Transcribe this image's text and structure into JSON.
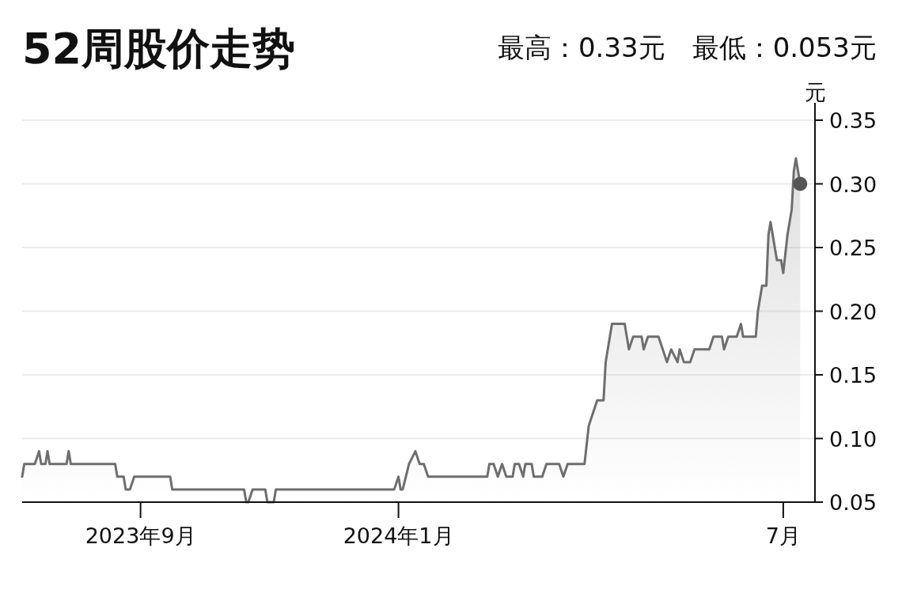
{
  "chart_data": {
    "type": "area",
    "title": "52周股价走势",
    "subtitle": "最高：0.33元　最低：0.053元",
    "ylabel": "元",
    "xlim": [
      "2023-07-07",
      "2024-07-16"
    ],
    "ylim": [
      0.05,
      0.35
    ],
    "xticks": [
      {
        "value": "2023-09-01",
        "label": "2023年9月"
      },
      {
        "value": "2024-01-01",
        "label": "2024年1月"
      },
      {
        "value": "2024-07-01",
        "label": "7月"
      }
    ],
    "yticks": [
      {
        "value": 0.05,
        "label": "0.05"
      },
      {
        "value": 0.1,
        "label": "0.10"
      },
      {
        "value": 0.15,
        "label": "0.15"
      },
      {
        "value": 0.2,
        "label": "0.20"
      },
      {
        "value": 0.25,
        "label": "0.25"
      },
      {
        "value": 0.3,
        "label": "0.30"
      },
      {
        "value": 0.35,
        "label": "0.35"
      }
    ],
    "grid": "y",
    "series": [
      {
        "color": "#6e6e6e",
        "x": [
          "2023-07-07",
          "2023-07-08",
          "2023-07-13",
          "2023-07-15",
          "2023-07-16",
          "2023-07-18",
          "2023-07-19",
          "2023-07-20",
          "2023-07-28",
          "2023-07-29",
          "2023-07-30",
          "2023-08-20",
          "2023-08-21",
          "2023-08-24",
          "2023-08-25",
          "2023-08-27",
          "2023-08-29",
          "2023-09-15",
          "2023-09-16",
          "2023-10-20",
          "2023-10-21",
          "2023-10-22",
          "2023-10-24",
          "2023-10-30",
          "2023-10-31",
          "2023-11-03",
          "2023-11-04",
          "2023-12-30",
          "2024-01-01",
          "2024-01-02",
          "2024-01-03",
          "2024-01-06",
          "2024-01-09",
          "2024-01-11",
          "2024-01-13",
          "2024-01-15",
          "2024-02-12",
          "2024-02-13",
          "2024-02-15",
          "2024-02-17",
          "2024-02-19",
          "2024-02-21",
          "2024-02-24",
          "2024-02-25",
          "2024-02-27",
          "2024-02-29",
          "2024-03-01",
          "2024-03-04",
          "2024-03-05",
          "2024-03-09",
          "2024-03-11",
          "2024-03-17",
          "2024-03-19",
          "2024-03-21",
          "2024-03-29",
          "2024-03-31",
          "2024-04-04",
          "2024-04-07",
          "2024-04-08",
          "2024-04-09",
          "2024-04-11",
          "2024-04-17",
          "2024-04-19",
          "2024-04-21",
          "2024-04-25",
          "2024-04-26",
          "2024-04-28",
          "2024-05-03",
          "2024-05-05",
          "2024-05-07",
          "2024-05-09",
          "2024-05-12",
          "2024-05-13",
          "2024-05-15",
          "2024-05-18",
          "2024-05-20",
          "2024-05-27",
          "2024-05-29",
          "2024-06-02",
          "2024-06-03",
          "2024-06-05",
          "2024-06-09",
          "2024-06-11",
          "2024-06-12",
          "2024-06-18",
          "2024-06-19",
          "2024-06-21",
          "2024-06-23",
          "2024-06-24",
          "2024-06-25",
          "2024-06-26",
          "2024-06-28",
          "2024-06-30",
          "2024-07-01",
          "2024-07-03",
          "2024-07-05",
          "2024-07-06",
          "2024-07-07",
          "2024-07-08",
          "2024-07-09"
        ],
        "values": [
          0.07,
          0.08,
          0.08,
          0.09,
          0.08,
          0.08,
          0.09,
          0.08,
          0.08,
          0.09,
          0.08,
          0.08,
          0.07,
          0.07,
          0.06,
          0.06,
          0.07,
          0.07,
          0.06,
          0.06,
          0.05,
          0.05,
          0.06,
          0.06,
          0.05,
          0.05,
          0.06,
          0.06,
          0.07,
          0.06,
          0.06,
          0.08,
          0.09,
          0.08,
          0.08,
          0.07,
          0.07,
          0.08,
          0.08,
          0.07,
          0.08,
          0.07,
          0.07,
          0.08,
          0.08,
          0.07,
          0.08,
          0.08,
          0.07,
          0.07,
          0.08,
          0.08,
          0.07,
          0.08,
          0.08,
          0.11,
          0.13,
          0.13,
          0.16,
          0.17,
          0.19,
          0.19,
          0.17,
          0.18,
          0.18,
          0.17,
          0.18,
          0.18,
          0.17,
          0.16,
          0.17,
          0.16,
          0.17,
          0.16,
          0.16,
          0.17,
          0.17,
          0.18,
          0.18,
          0.17,
          0.18,
          0.18,
          0.19,
          0.18,
          0.18,
          0.2,
          0.22,
          0.22,
          0.26,
          0.27,
          0.26,
          0.24,
          0.24,
          0.23,
          0.26,
          0.28,
          0.31,
          0.32,
          0.31,
          0.3
        ]
      },
      {
        "type": "scatter",
        "color": "#555555",
        "marker": "circle",
        "x": [
          "2024-07-09"
        ],
        "values": [
          0.3
        ]
      }
    ]
  }
}
